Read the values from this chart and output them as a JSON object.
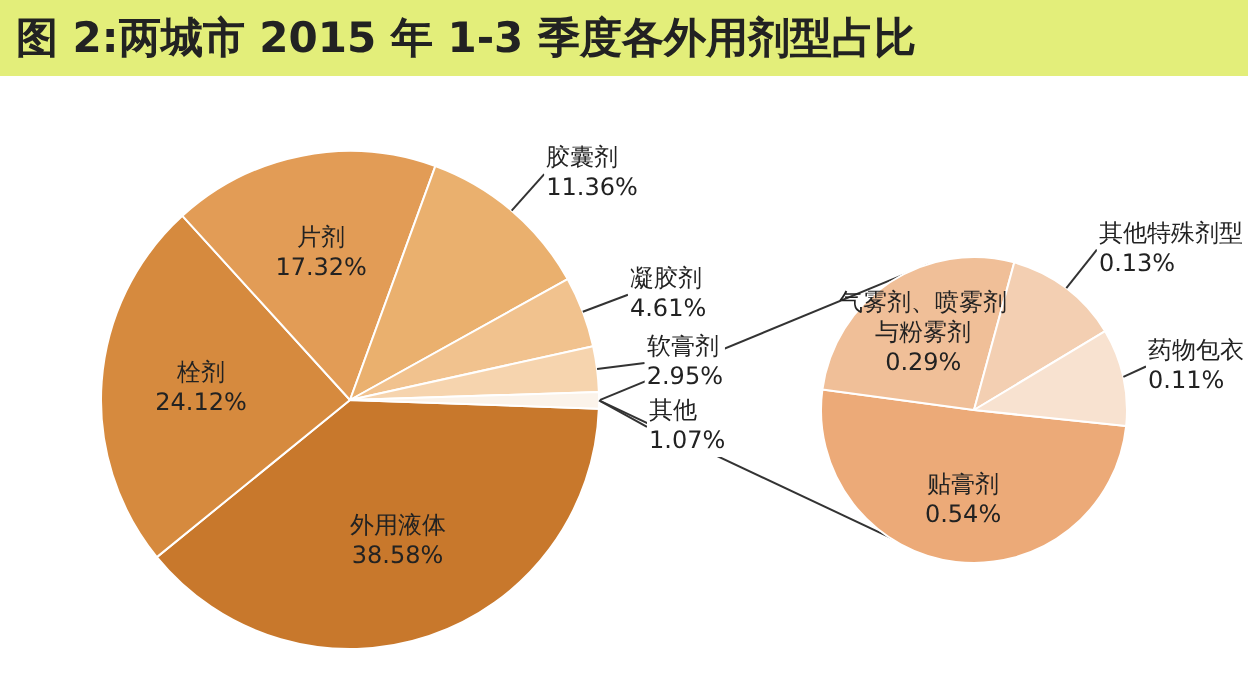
{
  "chart_data": [
    {
      "type": "pie",
      "title": "图 2:两城市 2015 年 1-3 季度各外用剂型占比",
      "categories": [
        "外用液体",
        "栓剂",
        "片剂",
        "胶囊剂",
        "凝胶剂",
        "软膏剂",
        "其他"
      ],
      "values": [
        38.58,
        24.12,
        17.32,
        11.36,
        4.61,
        2.95,
        1.07
      ],
      "value_labels": [
        "38.58%",
        "24.12%",
        "17.32%",
        "11.36%",
        "4.61%",
        "2.95%",
        "1.07%"
      ],
      "colors": [
        "#c8782c",
        "#d68a3e",
        "#e29c56",
        "#eab06e",
        "#f1c28e",
        "#f6d4ae",
        "#fbf3ea"
      ]
    },
    {
      "type": "pie",
      "categories": [
        "贴膏剂",
        "气雾剂、喷雾剂与粉雾剂",
        "其他特殊剂型",
        "药物包衣"
      ],
      "values": [
        0.54,
        0.29,
        0.13,
        0.11
      ],
      "value_labels": [
        "0.54%",
        "0.29%",
        "0.13%",
        "0.11%"
      ],
      "colors": [
        "#ecaa78",
        "#f0bf98",
        "#f3cfb2",
        "#f8e2d0"
      ]
    }
  ]
}
